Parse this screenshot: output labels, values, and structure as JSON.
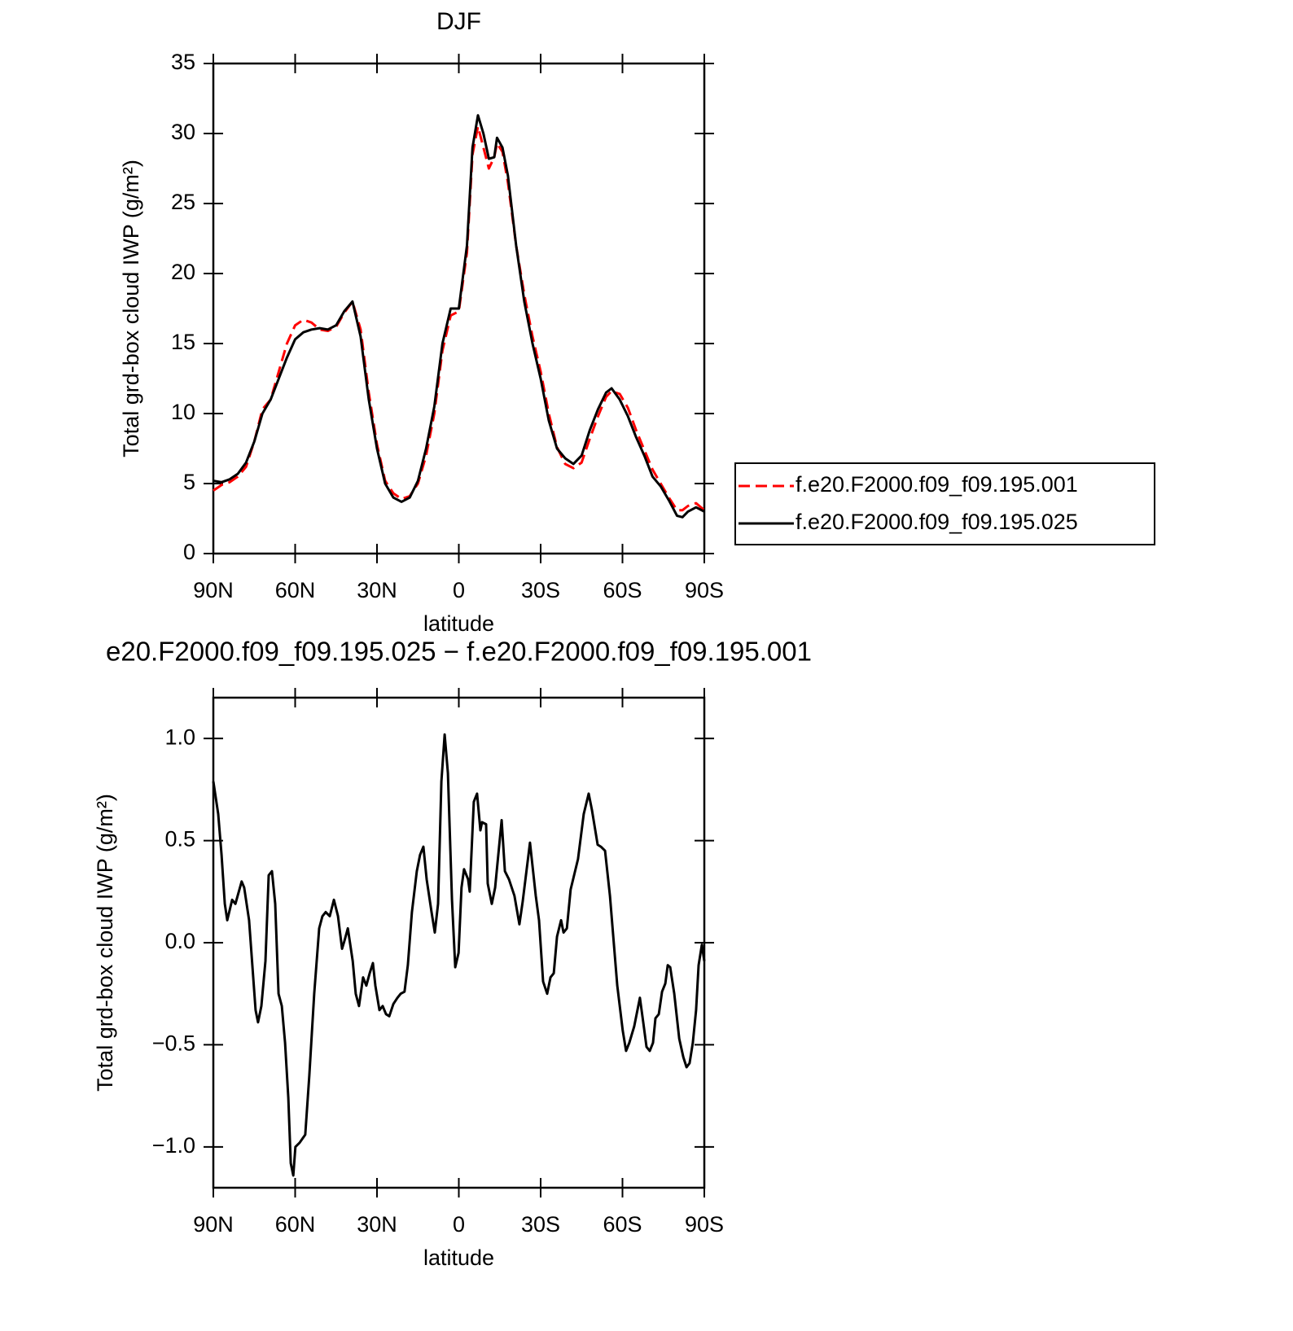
{
  "chart_data": [
    {
      "type": "line",
      "title": "DJF",
      "xlabel": "latitude",
      "ylabel": "Total grd-box cloud IWP (g/m²)",
      "x": [
        90,
        87,
        84,
        81,
        78,
        75,
        72,
        69,
        66,
        63,
        60,
        57,
        54,
        51,
        48,
        45,
        42,
        39,
        36,
        33,
        30,
        27,
        24,
        21,
        18,
        15,
        12,
        9,
        6,
        3,
        0,
        -3,
        -5,
        -7,
        -9,
        -11,
        -13,
        -14,
        -16,
        -18,
        -21,
        -24,
        -27,
        -30,
        -33,
        -36,
        -39,
        -42,
        -45,
        -48,
        -51,
        -54,
        -56,
        -59,
        -62,
        -65,
        -68,
        -71,
        -74,
        -77,
        -80,
        -82,
        -84,
        -87,
        -90
      ],
      "series": [
        {
          "name": "f.e20.F2000.f09_f09.195.001",
          "color": "#ff0000",
          "linestyle": "dashed",
          "values": [
            4.5,
            4.9,
            5.1,
            5.5,
            6.2,
            8.0,
            10.3,
            11.0,
            13.0,
            15.0,
            16.3,
            16.7,
            16.5,
            16.0,
            15.9,
            16.2,
            17.2,
            18.0,
            16.0,
            11.5,
            7.8,
            5.2,
            4.3,
            3.9,
            4.1,
            5.0,
            7.0,
            10.0,
            14.5,
            17.0,
            17.3,
            21.5,
            28.5,
            30.5,
            29,
            27.5,
            28.3,
            29.3,
            28.7,
            26.5,
            22,
            18.5,
            15.5,
            13,
            10,
            7.6,
            6.4,
            6.1,
            6.5,
            8.2,
            9.8,
            11.2,
            11.6,
            11.4,
            10.4,
            8.8,
            7.4,
            6,
            5.0,
            4.0,
            3.1,
            3.1,
            3.4,
            3.6,
            3.1
          ]
        },
        {
          "name": "f.e20.F2000.f09_f09.195.025",
          "color": "#000000",
          "linestyle": "solid",
          "values": [
            5.2,
            5.1,
            5.3,
            5.7,
            6.5,
            8.0,
            10.0,
            11.0,
            12.5,
            14.0,
            15.3,
            15.8,
            16.0,
            16.1,
            16.0,
            16.3,
            17.3,
            18.0,
            15.5,
            11.0,
            7.5,
            5.0,
            4.0,
            3.7,
            4.0,
            5.2,
            7.5,
            10.5,
            15.0,
            17.5,
            17.5,
            22,
            29,
            31.3,
            30,
            28.2,
            28.3,
            29.7,
            29,
            27,
            22,
            18,
            15,
            12.5,
            9.5,
            7.5,
            6.8,
            6.4,
            7,
            8.8,
            10.3,
            11.5,
            11.8,
            11,
            9.8,
            8.3,
            7,
            5.5,
            4.8,
            3.8,
            2.7,
            2.6,
            3.0,
            3.3,
            3.0
          ]
        }
      ],
      "xlim": [
        90,
        -90
      ],
      "xticks": [
        {
          "value": 90,
          "label": "90N"
        },
        {
          "value": 60,
          "label": "60N"
        },
        {
          "value": 30,
          "label": "30N"
        },
        0,
        {
          "value": -30,
          "label": "30S"
        },
        {
          "value": -60,
          "label": "60S"
        },
        {
          "value": -90,
          "label": "90S"
        }
      ],
      "ylim": [
        0,
        35
      ],
      "yticks": [
        0,
        5,
        10,
        15,
        20,
        25,
        30,
        35
      ],
      "legend": "right"
    },
    {
      "type": "line",
      "title": "e20.F2000.f09_f09.195.025 − f.e20.F2000.f09_f09.195.001",
      "xlabel": "latitude",
      "ylabel": "Total grd-box cloud IWP (g/m²)",
      "x": [
        90,
        88.2,
        87,
        85.8,
        84.9,
        83.1,
        81.9,
        79.6,
        78.7,
        76.9,
        74.5,
        73.6,
        72.4,
        70.9,
        69.7,
        68.5,
        67.3,
        66.1,
        64.9,
        63.7,
        62.5,
        61.6,
        60.7,
        59.9,
        58.4,
        56.3,
        54.8,
        53,
        51.2,
        50,
        48.8,
        47.3,
        45.8,
        44.3,
        42.8,
        41.9,
        40.7,
        38.9,
        37.8,
        36.6,
        35.1,
        33.9,
        32.7,
        31.5,
        30.6,
        29.1,
        27.9,
        26.7,
        25.5,
        24,
        22.5,
        21.3,
        19.9,
        18.7,
        17.2,
        15.4,
        14.2,
        13,
        11.8,
        10,
        8.8,
        7.6,
        6.4,
        5.2,
        4,
        2.5,
        1.3,
        0.1,
        -1,
        -1.9,
        -3.4,
        -4,
        -5.5,
        -6.7,
        -7.9,
        -8.5,
        -10,
        -10.6,
        -12.1,
        -13.3,
        -15.7,
        -16.9,
        -18.4,
        -20.4,
        -22.2,
        -23.4,
        -26.1,
        -28.2,
        -29.4,
        -30.9,
        -32.4,
        -33.6,
        -34.8,
        -36,
        -37.5,
        -38.4,
        -39.6,
        -41,
        -43.7,
        -45.8,
        -47.6,
        -48.8,
        -50.9,
        -52.1,
        -53.6,
        -55.4,
        -58.1,
        -60.1,
        -61.3,
        -62.5,
        -64.3,
        -66.4,
        -67.6,
        -68.8,
        -70,
        -71.2,
        -72.1,
        -73.3,
        -74.5,
        -75.7,
        -76.6,
        -77.5,
        -79,
        -80.8,
        -82.3,
        -83.5,
        -84.6,
        -85.8,
        -87,
        -87.9,
        -89.1,
        -90
      ],
      "series": [
        {
          "color": "#000000",
          "linestyle": "solid",
          "values": [
            0.79,
            0.63,
            0.43,
            0.19,
            0.11,
            0.21,
            0.19,
            0.3,
            0.27,
            0.11,
            -0.33,
            -0.39,
            -0.31,
            -0.09,
            0.33,
            0.35,
            0.19,
            -0.25,
            -0.31,
            -0.49,
            -0.76,
            -1.08,
            -1.14,
            -1.0,
            -0.98,
            -0.94,
            -0.65,
            -0.25,
            0.07,
            0.13,
            0.15,
            0.13,
            0.21,
            0.13,
            -0.03,
            0.01,
            0.07,
            -0.09,
            -0.25,
            -0.31,
            -0.17,
            -0.21,
            -0.15,
            -0.1,
            -0.21,
            -0.33,
            -0.31,
            -0.35,
            -0.36,
            -0.3,
            -0.27,
            -0.25,
            -0.24,
            -0.11,
            0.15,
            0.35,
            0.43,
            0.47,
            0.31,
            0.15,
            0.05,
            0.19,
            0.79,
            1.02,
            0.83,
            0.21,
            -0.12,
            -0.05,
            0.27,
            0.36,
            0.31,
            0.25,
            0.69,
            0.73,
            0.55,
            0.59,
            0.58,
            0.29,
            0.19,
            0.27,
            0.6,
            0.35,
            0.31,
            0.23,
            0.09,
            0.2,
            0.49,
            0.23,
            0.11,
            -0.19,
            -0.25,
            -0.17,
            -0.15,
            0.03,
            0.11,
            0.05,
            0.07,
            0.26,
            0.41,
            0.63,
            0.73,
            0.65,
            0.48,
            0.47,
            0.45,
            0.23,
            -0.21,
            -0.43,
            -0.53,
            -0.49,
            -0.41,
            -0.27,
            -0.39,
            -0.51,
            -0.53,
            -0.49,
            -0.37,
            -0.35,
            -0.24,
            -0.2,
            -0.11,
            -0.12,
            -0.25,
            -0.47,
            -0.56,
            -0.61,
            -0.59,
            -0.49,
            -0.33,
            -0.11,
            -0.01,
            -0.09
          ]
        }
      ],
      "xlim": [
        90,
        -90
      ],
      "xticks": [
        {
          "value": 90,
          "label": "90N"
        },
        {
          "value": 60,
          "label": "60N"
        },
        {
          "value": 30,
          "label": "30N"
        },
        0,
        {
          "value": -30,
          "label": "30S"
        },
        {
          "value": -60,
          "label": "60S"
        },
        {
          "value": -90,
          "label": "90S"
        }
      ],
      "ylim": [
        -1.2,
        1.2
      ],
      "yticks": [
        {
          "value": 1,
          "label": "1.0"
        },
        0.5,
        {
          "value": 0,
          "label": "0.0"
        },
        {
          "value": -0.5,
          "label": "−0.5"
        },
        {
          "value": -1,
          "label": "−1.0"
        }
      ]
    }
  ]
}
